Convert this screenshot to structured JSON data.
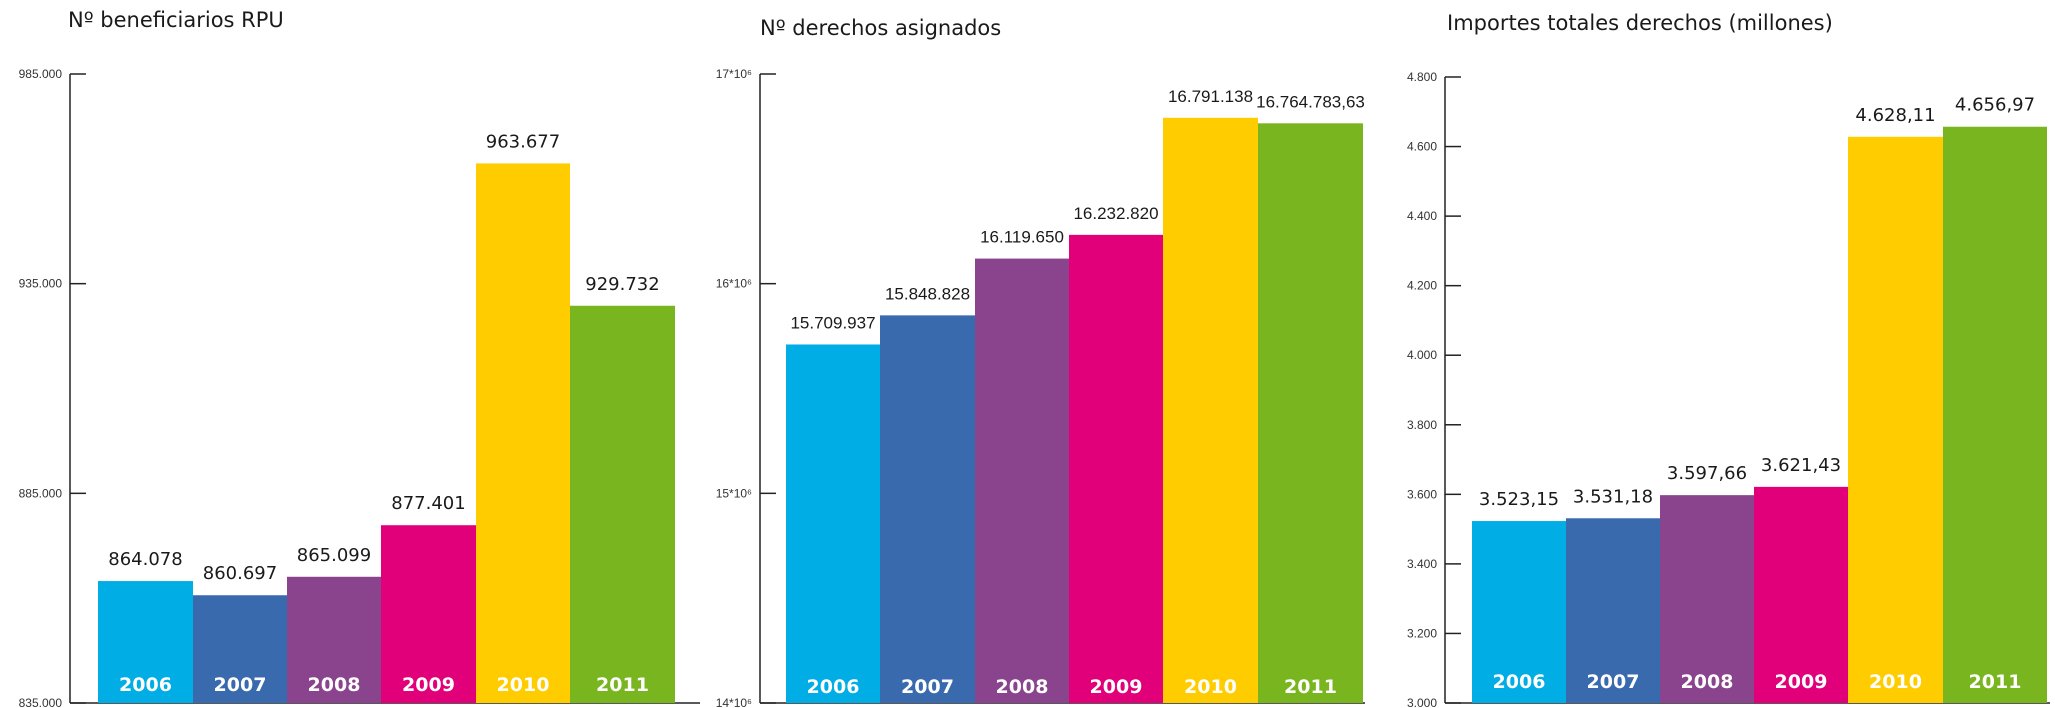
{
  "chart_data": [
    {
      "type": "bar",
      "title": "Nº beneficiarios RPU",
      "categories": [
        "2006",
        "2007",
        "2008",
        "2009",
        "2010",
        "2011"
      ],
      "values": [
        864078,
        860697,
        865099,
        877401,
        963677,
        929732
      ],
      "value_labels": [
        "864.078",
        "860.697",
        "865.099",
        "877.401",
        "963.677",
        "929.732"
      ],
      "ylim": [
        835000,
        985000
      ],
      "yticks": [
        835000,
        885000,
        935000,
        985000
      ],
      "ytick_labels": [
        "835.000",
        "885.000",
        "935.000",
        "985.000"
      ],
      "colors": [
        "#00ADE4",
        "#3A6AAE",
        "#8A438D",
        "#E2007A",
        "#FFCC00",
        "#79B51F"
      ],
      "xlabel": "",
      "ylabel": "",
      "grid": false,
      "legend": "none"
    },
    {
      "type": "bar",
      "title": "Nº derechos asignados",
      "categories": [
        "2006",
        "2007",
        "2008",
        "2009",
        "2010",
        "2011"
      ],
      "values": [
        15709937,
        15848828,
        16119650,
        16232820,
        16791138,
        16764783.63
      ],
      "value_labels": [
        "15.709.937",
        "15.848.828",
        "16.119.650",
        "16.232.820",
        "16.791.138",
        "16.764.783,63"
      ],
      "ylim": [
        14000000,
        17000000
      ],
      "yticks": [
        14000000,
        15000000,
        16000000,
        17000000
      ],
      "ytick_labels": [
        "14*10⁶",
        "15*10⁶",
        "16*10⁶",
        "17*10⁶"
      ],
      "colors": [
        "#00ADE4",
        "#3A6AAE",
        "#8A438D",
        "#E2007A",
        "#FFCC00",
        "#79B51F"
      ],
      "xlabel": "",
      "ylabel": "",
      "grid": false,
      "legend": "none"
    },
    {
      "type": "bar",
      "title": "Importes totales derechos (millones)",
      "categories": [
        "2006",
        "2007",
        "2008",
        "2009",
        "2010",
        "2011"
      ],
      "values": [
        3523.15,
        3531.18,
        3597.66,
        3621.43,
        4628.11,
        4656.97
      ],
      "value_labels": [
        "3.523,15",
        "3.531,18",
        "3.597,66",
        "3.621,43",
        "4.628,11",
        "4.656,97"
      ],
      "ylim": [
        3000,
        4800
      ],
      "yticks": [
        3000,
        3200,
        3400,
        3600,
        3800,
        4000,
        4200,
        4400,
        4600,
        4800
      ],
      "ytick_labels": [
        "3.000",
        "3.200",
        "3.400",
        "3.600",
        "3.800",
        "4.000",
        "4.200",
        "4.400",
        "4.600",
        "4.800"
      ],
      "colors": [
        "#00ADE4",
        "#3A6AAE",
        "#8A438D",
        "#E2007A",
        "#FFCC00",
        "#79B51F"
      ],
      "xlabel": "",
      "ylabel": "",
      "grid": false,
      "legend": "none"
    }
  ]
}
